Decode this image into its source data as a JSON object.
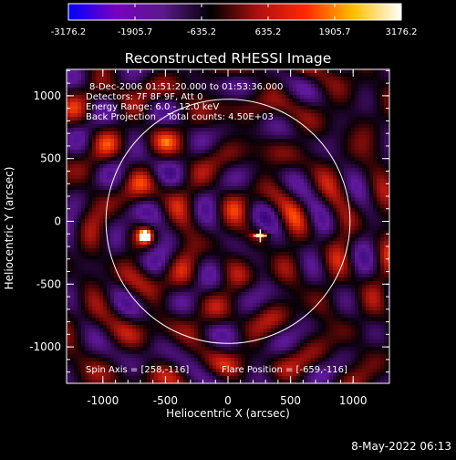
{
  "chart_data": {
    "type": "heatmap",
    "title": "Reconstructed RHESSI Image",
    "xlabel": "Heliocentric X (arcsec)",
    "ylabel": "Heliocentric Y (arcsec)",
    "xlim": [
      -1290,
      1290
    ],
    "ylim": [
      -1290,
      1210
    ],
    "x_ticks": [
      -1000,
      -500,
      0,
      500,
      1000
    ],
    "y_ticks": [
      1000,
      500,
      0,
      -500,
      -1000
    ],
    "colorbar": {
      "min": -3176.2,
      "max": 3176.2,
      "tick_values": [
        -3176.2,
        -1905.7,
        -635.2,
        635.2,
        1905.7,
        3176.2
      ],
      "tick_labels": [
        "-3176.2",
        "-1905.7",
        "-635.2",
        "635.2",
        "1905.7",
        "3176.2"
      ],
      "colors": [
        "#0000ff",
        "#7a00c0",
        "#5a1a8a",
        "#000000",
        "#b01010",
        "#ff2a00",
        "#ffc000",
        "#ffffff"
      ]
    },
    "info_lines": [
      "8-Dec-2006 01:51:20.000 to 01:53:36.000",
      "Detectors: 7F 8F 9F, Att 0",
      "Energy Range: 6.0 - 12.0 keV",
      "Back Projection    Total counts: 4.50E+03"
    ],
    "spin_axis_text": "Spin Axis = [258,-116]",
    "flare_position_text": "Flare Position = [-659,-116]",
    "spin_axis": [
      258,
      -116
    ],
    "flare_position": [
      -659,
      -116
    ],
    "solar_limb": {
      "center": [
        0,
        0
      ],
      "radius": 975
    },
    "peaks": [
      {
        "x": -659,
        "y": -116,
        "value": 3176.2
      },
      {
        "x": 258,
        "y": -116,
        "value": 2200
      }
    ]
  },
  "footer": {
    "timestamp": "8-May-2022 06:13"
  },
  "colors": {
    "background": "#000000",
    "foreground": "#ffffff"
  }
}
